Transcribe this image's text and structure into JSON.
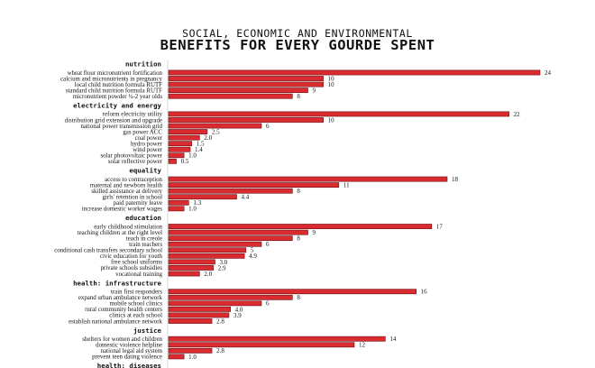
{
  "chart_data": {
    "type": "bar",
    "orientation": "horizontal",
    "title": "SOCIAL, ECONOMIC AND ENVIRONMENTAL",
    "subtitle": "BENEFITS FOR EVERY GOURDE SPENT",
    "colors": {
      "bar": "#d92b30",
      "bar_edge": "#6a0f12",
      "axis": "#cfcfcf"
    },
    "xlim": [
      0,
      24
    ],
    "groups": [
      {
        "name": "nutrition",
        "items": [
          {
            "label": "wheat flour micronutrient fortification",
            "value": 24
          },
          {
            "label": "calcium and micronutrients in pregnancy",
            "value": 10
          },
          {
            "label": "local child nutrition formula RUTF",
            "value": 10
          },
          {
            "label": "standard child nutrition formula RUTF",
            "value": 9
          },
          {
            "label": "micronutrient powder ½-2 year olds",
            "value": 8
          }
        ]
      },
      {
        "name": "electricity and energy",
        "items": [
          {
            "label": "reform electricity utility",
            "value": 22
          },
          {
            "label": "distribution grid extension and upgrade",
            "value": 10
          },
          {
            "label": "national power transmission grid",
            "value": 6
          },
          {
            "label": "gas power ACC",
            "value": 2.5
          },
          {
            "label": "coal power",
            "value": 2.0
          },
          {
            "label": "hydro power",
            "value": 1.5
          },
          {
            "label": "wind power",
            "value": 1.4
          },
          {
            "label": "solar photovoltaic power",
            "value": 1.0
          },
          {
            "label": "solar reflective power",
            "value": 0.5
          }
        ]
      },
      {
        "name": "equality",
        "items": [
          {
            "label": "access to contraception",
            "value": 18
          },
          {
            "label": "maternal and newborn health",
            "value": 11
          },
          {
            "label": "skilled assistance at delivery",
            "value": 8
          },
          {
            "label": "girls' retention in school",
            "value": 4.4
          },
          {
            "label": "paid paternity leave",
            "value": 1.3
          },
          {
            "label": "increase domestic worker wages",
            "value": 1.0
          }
        ]
      },
      {
        "name": "education",
        "items": [
          {
            "label": "early childhood stimulation",
            "value": 17
          },
          {
            "label": "teaching children at the right level",
            "value": 9
          },
          {
            "label": "teach in creole",
            "value": 8
          },
          {
            "label": "train teachers",
            "value": 6
          },
          {
            "label": "conditional cash transfers secondary school",
            "value": 5
          },
          {
            "label": "civic education for youth",
            "value": 4.9
          },
          {
            "label": "free school uniforms",
            "value": 3.0
          },
          {
            "label": "private schools subsidies",
            "value": 2.9
          },
          {
            "label": "vocational training",
            "value": 2.0
          }
        ]
      },
      {
        "name": "health: infrastructure",
        "items": [
          {
            "label": "train first responders",
            "value": 16
          },
          {
            "label": "expand urban ambulance network",
            "value": 8
          },
          {
            "label": "mobile school clinics",
            "value": 6
          },
          {
            "label": "rural community health centers",
            "value": 4.0
          },
          {
            "label": "clinics at each school",
            "value": 3.9
          },
          {
            "label": "establish national ambulance network",
            "value": 2.8
          }
        ]
      },
      {
        "name": "justice",
        "items": [
          {
            "label": "shelters for women and children",
            "value": 14
          },
          {
            "label": "domestic violence helpline",
            "value": 12
          },
          {
            "label": "national legal aid system",
            "value": 2.8
          },
          {
            "label": "prevent teen dating violence",
            "value": 1.0
          }
        ]
      },
      {
        "name": "health: diseases",
        "items": []
      }
    ]
  }
}
